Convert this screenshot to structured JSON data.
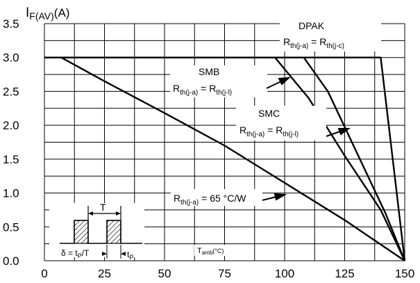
{
  "chart_data": {
    "type": "line",
    "xlabel": "T",
    "xlabel_sub": "amb",
    "xlabel_unit": "(°C)",
    "ylabel": "I",
    "ylabel_sub": "F(AV)",
    "ylabel_unit": "(A)",
    "xlim": [
      0,
      150
    ],
    "ylim": [
      0,
      3.5
    ],
    "x_ticks": [
      "0",
      "25",
      "50",
      "75",
      "100",
      "125",
      "150"
    ],
    "y_ticks": [
      "0.0",
      "0.5",
      "1.0",
      "1.5",
      "2.0",
      "2.5",
      "3.0",
      "3.5"
    ],
    "grid": true,
    "series": [
      {
        "name": "DPAK",
        "x": [
          0,
          140,
          150
        ],
        "y": [
          3.0,
          3.0,
          0.0
        ]
      },
      {
        "name": "SMB",
        "x": [
          0,
          96,
          110,
          125,
          140,
          150
        ],
        "y": [
          3.0,
          3.0,
          2.4,
          1.55,
          0.75,
          0.0
        ]
      },
      {
        "name": "SMC",
        "x": [
          0,
          108,
          118,
          130,
          142,
          150
        ],
        "y": [
          3.0,
          3.0,
          2.5,
          1.6,
          0.7,
          0.0
        ]
      },
      {
        "name": "",
        "x": [
          0,
          7,
          25,
          50,
          75,
          100,
          125,
          150
        ],
        "y": [
          3.0,
          3.0,
          2.65,
          2.18,
          1.7,
          1.15,
          0.6,
          0.0
        ]
      }
    ],
    "annotations": {
      "dpak": {
        "title": "DPAK",
        "main1": "R",
        "sub1": "th(j-a)",
        "eq": " = ",
        "main2": "R",
        "sub2": "th(j-c)"
      },
      "smb": {
        "title": "SMB",
        "main1": "R",
        "sub1": "th(j-a)",
        "eq": " = ",
        "main2": "R",
        "sub2": "th(j-l)"
      },
      "smc": {
        "title": "SMC",
        "main1": "R",
        "sub1": "th(j-a)",
        "eq": " = ",
        "main2": "R",
        "sub2": "th(j-l)"
      },
      "free": {
        "main": "R",
        "sub": "th(j-a)",
        "tail": " = 65 °C/W"
      }
    },
    "inset": {
      "period_label": "T",
      "delta_label": "δ = t",
      "delta_sub": "P",
      "delta_tail": "/T",
      "tp_main": "t",
      "tp_sub": "P"
    }
  }
}
